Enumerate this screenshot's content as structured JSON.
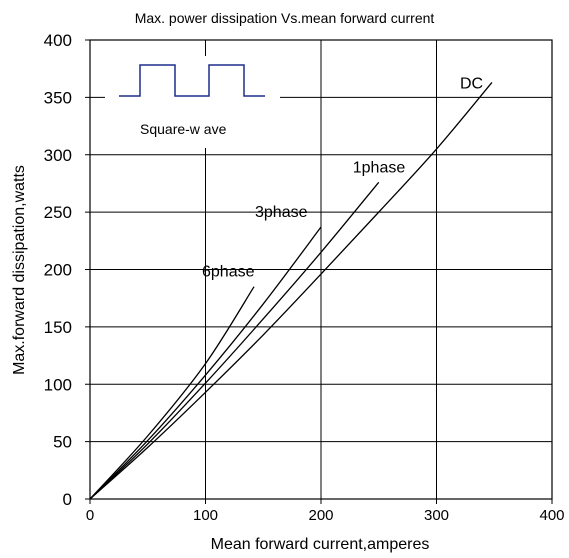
{
  "chart_data": {
    "type": "line",
    "title": "Max. power dissipation  Vs.mean forward current",
    "xlabel": "Mean forward  current,amperes",
    "ylabel": "Max.forward  dissipation,watts",
    "xlim": [
      0,
      400
    ],
    "ylim": [
      0,
      400
    ],
    "xticks": [
      0,
      100,
      200,
      300,
      400
    ],
    "yticks": [
      0,
      50,
      100,
      150,
      200,
      250,
      300,
      350,
      400
    ],
    "grid": true,
    "legend": "none",
    "series": [
      {
        "name": "DC",
        "x": [
          0,
          50,
          100,
          150,
          200,
          250,
          300,
          348
        ],
        "y": [
          0,
          45,
          93,
          143,
          196,
          250,
          305,
          363
        ]
      },
      {
        "name": "1phase",
        "x": [
          0,
          50,
          100,
          150,
          200,
          250
        ],
        "y": [
          0,
          48,
          101,
          157,
          215,
          276
        ]
      },
      {
        "name": "3phase",
        "x": [
          0,
          50,
          100,
          150,
          200
        ],
        "y": [
          0,
          51,
          108,
          170,
          237
        ]
      },
      {
        "name": "6phase",
        "x": [
          0,
          50,
          100,
          142
        ],
        "y": [
          0,
          55,
          118,
          185
        ]
      }
    ],
    "inset": {
      "label": "Square-w ave"
    }
  }
}
